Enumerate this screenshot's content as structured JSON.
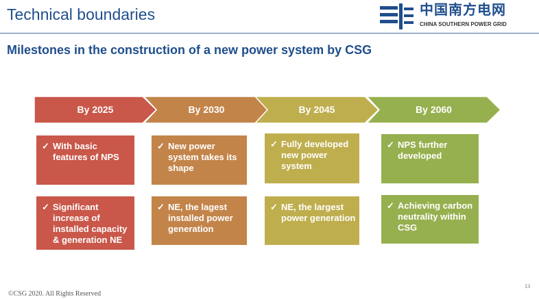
{
  "header": {
    "title": "Technical boundaries",
    "subtitle": "Milestones in the construction of a new power system by CSG"
  },
  "logo": {
    "chinese": "中国南方电网",
    "english": "CHINA SOUTHERN POWER GRID"
  },
  "colors": {
    "c2025": "#c9574a",
    "c2030": "#c3844a",
    "c2045": "#bfae4e",
    "c2060": "#97b04f",
    "brand": "#1f4e8c"
  },
  "milestones": [
    {
      "label": "By 2025",
      "items": [
        "With basic features of NPS",
        "Significant increase of installed capacity & generation NE"
      ]
    },
    {
      "label": "By 2030",
      "items": [
        "New power system takes its shape",
        "NE,  the lagest installed power generation"
      ]
    },
    {
      "label": "By 2045",
      "items": [
        "Fully  developed new power system",
        "NE, the largest power generation"
      ]
    },
    {
      "label": "By 2060",
      "items": [
        "NPS further developed",
        "Achieving carbon neutrality within CSG"
      ]
    }
  ],
  "check_icon": "✓",
  "footer": {
    "copyright": "©CSG 2020. All Rights Reserved",
    "page": "13"
  }
}
